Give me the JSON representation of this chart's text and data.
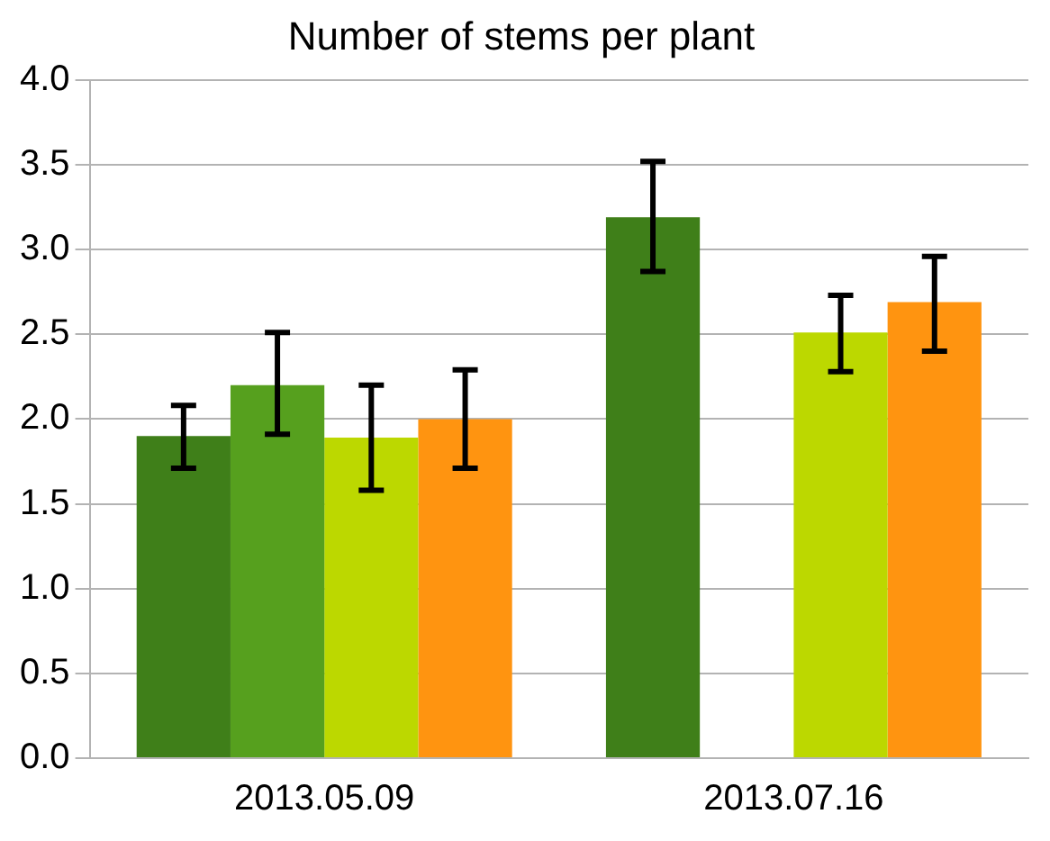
{
  "chart_data": {
    "type": "bar",
    "title": "Number of stems per plant",
    "categories": [
      "2013.05.09",
      "2013.07.16"
    ],
    "series": [
      {
        "color": "#3f7f19",
        "values": [
          1.9,
          3.19
        ],
        "errors": [
          [
            1.71,
            2.08
          ],
          [
            2.87,
            3.52
          ]
        ]
      },
      {
        "color": "#56a01e",
        "values": [
          2.2,
          null
        ],
        "errors": [
          [
            1.91,
            2.51
          ],
          null
        ]
      },
      {
        "color": "#bcd800",
        "values": [
          1.89,
          2.51
        ],
        "errors": [
          [
            1.58,
            2.2
          ],
          [
            2.28,
            2.73
          ]
        ]
      },
      {
        "color": "#ff9410",
        "values": [
          2.0,
          2.69
        ],
        "errors": [
          [
            1.71,
            2.29
          ],
          [
            2.4,
            2.96
          ]
        ]
      }
    ],
    "ylim": [
      0,
      4
    ],
    "yticks": [
      {
        "value": 0,
        "label": "0.0"
      },
      {
        "value": 0.5,
        "label": "0.5"
      },
      {
        "value": 1,
        "label": "1.0"
      },
      {
        "value": 1.5,
        "label": "1.5"
      },
      {
        "value": 2,
        "label": "2.0"
      },
      {
        "value": 2.5,
        "label": "2.5"
      },
      {
        "value": 3,
        "label": "3.0"
      },
      {
        "value": 3.5,
        "label": "3.5"
      },
      {
        "value": 4,
        "label": "4.0"
      }
    ],
    "grid": "y",
    "legend": false
  }
}
